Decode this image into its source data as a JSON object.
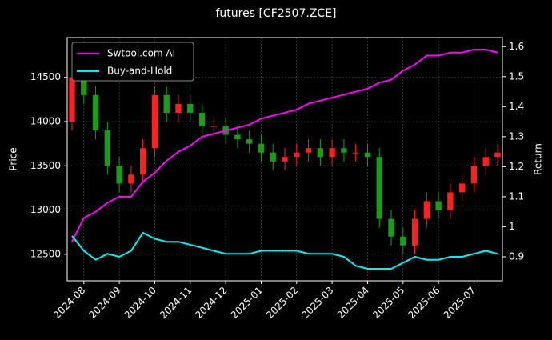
{
  "chart_data": {
    "type": "candlestick",
    "title": "futures [CF2507.ZCE]",
    "ylabel": "Price",
    "y2label": "Return",
    "x": [
      "2024-07",
      "2024-08",
      "2024-08",
      "2024-08",
      "2024-09",
      "2024-09",
      "2024-09",
      "2024-10",
      "2024-10",
      "2024-10",
      "2024-11",
      "2024-11",
      "2024-11",
      "2024-12",
      "2024-12",
      "2024-12",
      "2025-01",
      "2025-01",
      "2025-01",
      "2025-02",
      "2025-02",
      "2025-02",
      "2025-03",
      "2025-03",
      "2025-03",
      "2025-04",
      "2025-04",
      "2025-04",
      "2025-05",
      "2025-05",
      "2025-05",
      "2025-06",
      "2025-06",
      "2025-06",
      "2025-07",
      "2025-07",
      "2025-07"
    ],
    "open": [
      14000,
      14500,
      14300,
      13900,
      13500,
      13300,
      13400,
      13700,
      14300,
      14100,
      14200,
      14100,
      13950,
      13950,
      13850,
      13800,
      13750,
      13650,
      13550,
      13600,
      13650,
      13700,
      13600,
      13700,
      13650,
      13650,
      13600,
      12900,
      12700,
      12600,
      12900,
      13100,
      13000,
      13200,
      13300,
      13500,
      13600
    ],
    "high": [
      14600,
      14600,
      14400,
      14000,
      13600,
      13500,
      13800,
      14400,
      14400,
      14300,
      14300,
      14200,
      14050,
      14050,
      13950,
      13900,
      13850,
      13750,
      13700,
      13750,
      13800,
      13800,
      13800,
      13800,
      13750,
      13750,
      13700,
      13000,
      12800,
      13000,
      13200,
      13200,
      13300,
      13400,
      13600,
      13700,
      13750
    ],
    "low": [
      13900,
      14200,
      13800,
      13400,
      13200,
      13200,
      13300,
      13600,
      14000,
      14000,
      14000,
      13850,
      13850,
      13750,
      13700,
      13650,
      13550,
      13450,
      13450,
      13500,
      13550,
      13500,
      13500,
      13550,
      13550,
      13500,
      12800,
      12600,
      12500,
      12500,
      12800,
      12900,
      12900,
      13100,
      13200,
      13400,
      13500
    ],
    "close": [
      14500,
      14300,
      13900,
      13500,
      13300,
      13400,
      13700,
      14300,
      14100,
      14200,
      14100,
      13950,
      13950,
      13850,
      13800,
      13750,
      13650,
      13550,
      13600,
      13650,
      13700,
      13600,
      13700,
      13650,
      13650,
      13600,
      12900,
      12700,
      12600,
      12900,
      13100,
      13000,
      13200,
      13300,
      13500,
      13600,
      13650
    ],
    "up_color": "#ff2020",
    "down_color": "#1a9e1a",
    "series": [
      {
        "name": "Swtool.com AI",
        "color": "#ff00ff",
        "axis": "y2",
        "values": [
          0.95,
          1.03,
          1.05,
          1.08,
          1.1,
          1.1,
          1.15,
          1.18,
          1.22,
          1.25,
          1.27,
          1.3,
          1.31,
          1.32,
          1.33,
          1.34,
          1.36,
          1.37,
          1.38,
          1.39,
          1.41,
          1.42,
          1.43,
          1.44,
          1.45,
          1.46,
          1.48,
          1.49,
          1.52,
          1.54,
          1.57,
          1.57,
          1.58,
          1.58,
          1.59,
          1.59,
          1.58
        ]
      },
      {
        "name": "Buy-and-Hold",
        "color": "#00f0f0",
        "axis": "y2",
        "values": [
          0.97,
          0.92,
          0.89,
          0.91,
          0.9,
          0.92,
          0.98,
          0.96,
          0.95,
          0.95,
          0.94,
          0.93,
          0.92,
          0.91,
          0.91,
          0.91,
          0.92,
          0.92,
          0.92,
          0.92,
          0.91,
          0.91,
          0.91,
          0.9,
          0.87,
          0.86,
          0.86,
          0.86,
          0.88,
          0.9,
          0.89,
          0.89,
          0.9,
          0.9,
          0.91,
          0.92,
          0.91
        ]
      }
    ],
    "xticks": [
      "2024-08",
      "2024-09",
      "2024-10",
      "2024-11",
      "2024-12",
      "2025-01",
      "2025-02",
      "2025-03",
      "2025-04",
      "2025-05",
      "2025-06",
      "2025-07"
    ],
    "ylim": [
      12200,
      14950
    ],
    "yticks": [
      12500,
      13000,
      13500,
      14000,
      14500
    ],
    "y2lim": [
      0.82,
      1.63
    ],
    "y2ticks": [
      0.9,
      1.0,
      1.1,
      1.2,
      1.3,
      1.4,
      1.5,
      1.6
    ],
    "grid": true,
    "legend": "upper left"
  }
}
